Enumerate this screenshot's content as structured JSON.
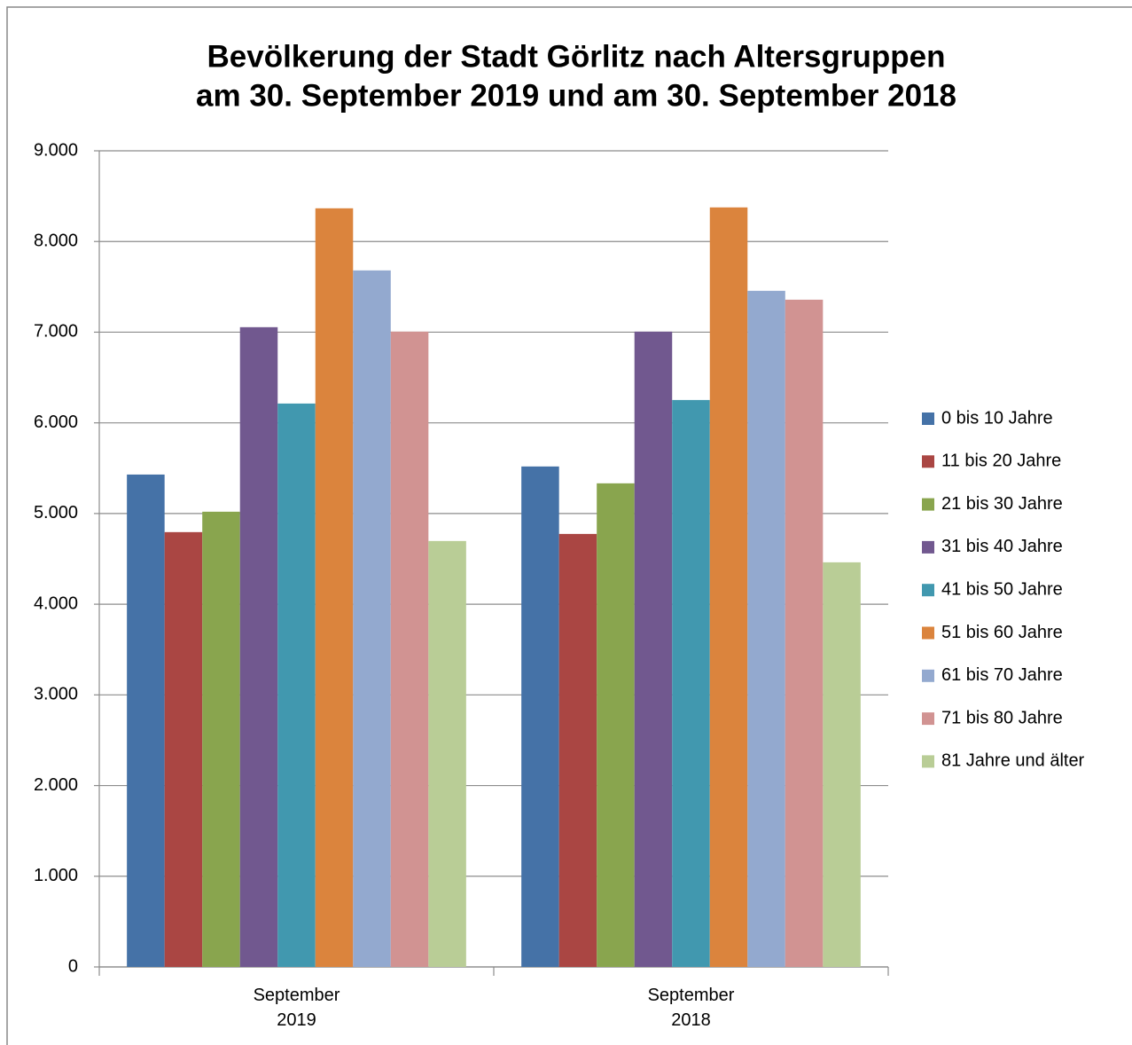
{
  "chart_data": {
    "type": "bar",
    "title": [
      "Bevölkerung der Stadt Görlitz nach Altersgruppen",
      "am 30. September 2019 und am 30. September 2018"
    ],
    "categories": [
      "September 2019",
      "September 2018"
    ],
    "series": [
      {
        "name": "0 bis 10 Jahre",
        "color": "#4572a7",
        "values": [
          5430,
          5519
        ]
      },
      {
        "name": "11 bis 20 Jahre",
        "color": "#aa4643",
        "values": [
          4795,
          4775
        ]
      },
      {
        "name": "21 bis 30 Jahre",
        "color": "#89a54e",
        "values": [
          5020,
          5333
        ]
      },
      {
        "name": "31 bis 40 Jahre",
        "color": "#71588f",
        "values": [
          7055,
          7006
        ]
      },
      {
        "name": "41 bis 50 Jahre",
        "color": "#4198af",
        "values": [
          6213,
          6252
        ]
      },
      {
        "name": "51 bis 60 Jahre",
        "color": "#db843d",
        "values": [
          8366,
          8376
        ]
      },
      {
        "name": "61 bis 70 Jahre",
        "color": "#93a9cf",
        "values": [
          7681,
          7456
        ]
      },
      {
        "name": "71 bis 80 Jahre",
        "color": "#d19392",
        "values": [
          7006,
          7358
        ]
      },
      {
        "name": "81 Jahre und älter",
        "color": "#b9cd96",
        "values": [
          4697,
          4462
        ]
      }
    ],
    "ylim": [
      0,
      9000
    ],
    "yticks": [
      0,
      {
        "value": 1000,
        "label": "1.000"
      },
      {
        "value": 2000,
        "label": "2.000"
      },
      {
        "value": 3000,
        "label": "3.000"
      },
      {
        "value": 4000,
        "label": "4.000"
      },
      {
        "value": 5000,
        "label": "5.000"
      },
      {
        "value": 6000,
        "label": "6.000"
      },
      {
        "value": 7000,
        "label": "7.000"
      },
      {
        "value": 8000,
        "label": "8.000"
      },
      {
        "value": 9000,
        "label": "9.000"
      }
    ],
    "grid": true,
    "legend": "right"
  }
}
